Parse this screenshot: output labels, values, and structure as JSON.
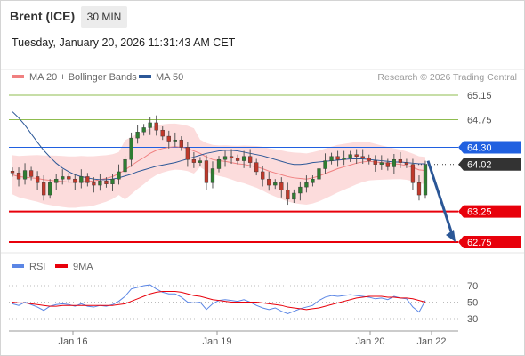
{
  "header": {
    "instrument": "Brent (ICE)",
    "timeframe": "30 MIN",
    "datetime": "Tuesday, January 20, 2026 11:31:43 AM CET"
  },
  "legend": {
    "ma20": "MA 20 + Bollinger Bands",
    "ma50": "MA 50",
    "credit": "Research © 2026 Trading Central",
    "rsi": "RSI",
    "rsi_ma": "9MA"
  },
  "colors": {
    "ma20": "#f08080",
    "ma50": "#2b5797",
    "bollinger": "#fbd0d0",
    "candle": "#c0392b",
    "support": "#e8000b",
    "resistance_green": "#8fbc4f",
    "pivot": "#2060e0",
    "last_price": "#333333",
    "rsi": "#5b86e5",
    "arrow": "#2b5797"
  },
  "chart_data": {
    "type": "line",
    "title": "Brent (ICE)",
    "price_axis_range": [
      62.55,
      65.35
    ],
    "current_price": 64.02,
    "levels": [
      {
        "value": 65.15,
        "type": "resistance"
      },
      {
        "value": 64.75,
        "type": "resistance"
      },
      {
        "value": 64.3,
        "type": "pivot"
      },
      {
        "value": 64.02,
        "type": "last"
      },
      {
        "value": 63.25,
        "type": "support"
      },
      {
        "value": 62.75,
        "type": "support"
      }
    ],
    "x_tick_labels": [
      "Jan 16",
      "Jan 19",
      "Jan 20",
      "Jan 22"
    ],
    "close_series": [
      63.88,
      63.78,
      63.92,
      63.82,
      63.72,
      63.52,
      63.72,
      63.78,
      63.82,
      63.78,
      63.72,
      63.82,
      63.72,
      63.68,
      63.75,
      63.7,
      63.78,
      63.9,
      64.1,
      64.45,
      64.55,
      64.62,
      64.7,
      64.58,
      64.48,
      64.4,
      64.42,
      64.3,
      64.1,
      64.05,
      64.08,
      63.72,
      63.95,
      64.1,
      64.15,
      64.12,
      64.08,
      64.15,
      64.05,
      63.9,
      63.78,
      63.68,
      63.72,
      63.6,
      63.45,
      63.55,
      63.65,
      63.72,
      63.78,
      63.95,
      64.08,
      64.15,
      64.1,
      64.12,
      64.18,
      64.15,
      64.12,
      64.08,
      64.02,
      64.05,
      63.98,
      64.1,
      64.05,
      64.02,
      63.72,
      63.52,
      64.02
    ],
    "ma20_series": [
      63.85,
      63.82,
      63.81,
      63.8,
      63.79,
      63.77,
      63.76,
      63.75,
      63.74,
      63.73,
      63.73,
      63.74,
      63.74,
      63.75,
      63.77,
      63.79,
      63.82,
      63.87,
      63.93,
      64.0,
      64.07,
      64.13,
      64.2,
      64.25,
      64.28,
      64.3,
      64.31,
      64.3,
      64.28,
      64.24,
      64.2,
      64.14,
      64.1,
      64.08,
      64.07,
      64.05,
      64.03,
      64.02,
      64.0,
      63.98,
      63.95,
      63.91,
      63.88,
      63.85,
      63.82,
      63.8,
      63.79,
      63.78,
      63.8,
      63.83,
      63.87,
      63.91,
      63.95,
      63.98,
      64.01,
      64.04,
      64.06,
      64.07,
      64.06,
      64.05,
      64.04,
      64.03,
      64.02,
      64.0,
      63.97,
      63.93,
      63.92
    ],
    "ma50_series": [
      64.88,
      64.78,
      64.66,
      64.52,
      64.38,
      64.25,
      64.14,
      64.04,
      63.96,
      63.9,
      63.85,
      63.82,
      63.8,
      63.78,
      63.77,
      63.77,
      63.78,
      63.8,
      63.83,
      63.86,
      63.9,
      63.93,
      63.96,
      63.99,
      64.01,
      64.03,
      64.05,
      64.08,
      64.11,
      64.14,
      64.17,
      64.2,
      64.22,
      64.24,
      64.25,
      64.25,
      64.24,
      64.22,
      64.2,
      64.18,
      64.16,
      64.13,
      64.1,
      64.07,
      64.04,
      64.02,
      64.02,
      64.03,
      64.05,
      64.06,
      64.07,
      64.08,
      64.09,
      64.1,
      64.11,
      64.11,
      64.11,
      64.1,
      64.09,
      64.08,
      64.07,
      64.06,
      64.06,
      64.05,
      64.04,
      64.03,
      64.03
    ],
    "rsi_axis_ticks": [
      70,
      50,
      30
    ],
    "rsi_range": [
      20,
      80
    ],
    "rsi_series": [
      48,
      46,
      50,
      47,
      44,
      40,
      45,
      47,
      48,
      47,
      45,
      48,
      45,
      44,
      46,
      45,
      47,
      51,
      57,
      66,
      68,
      70,
      71,
      66,
      62,
      60,
      60,
      56,
      50,
      49,
      50,
      41,
      48,
      52,
      53,
      52,
      51,
      53,
      50,
      46,
      43,
      41,
      43,
      39,
      36,
      39,
      42,
      44,
      46,
      52,
      56,
      58,
      57,
      58,
      59,
      58,
      57,
      56,
      54,
      55,
      53,
      57,
      55,
      54,
      44,
      38,
      52
    ],
    "rsi_ma_series": [
      50,
      49,
      49,
      48,
      47,
      46,
      45,
      45,
      46,
      46,
      46,
      46,
      46,
      46,
      46,
      46,
      46,
      47,
      48,
      51,
      54,
      57,
      60,
      62,
      63,
      63,
      63,
      62,
      60,
      58,
      57,
      55,
      53,
      52,
      51,
      50,
      50,
      50,
      50,
      50,
      49,
      48,
      47,
      46,
      44,
      43,
      42,
      41,
      42,
      43,
      45,
      47,
      49,
      51,
      53,
      55,
      56,
      57,
      57,
      57,
      56,
      56,
      55,
      55,
      54,
      52,
      50
    ],
    "projection_target": 62.75
  }
}
